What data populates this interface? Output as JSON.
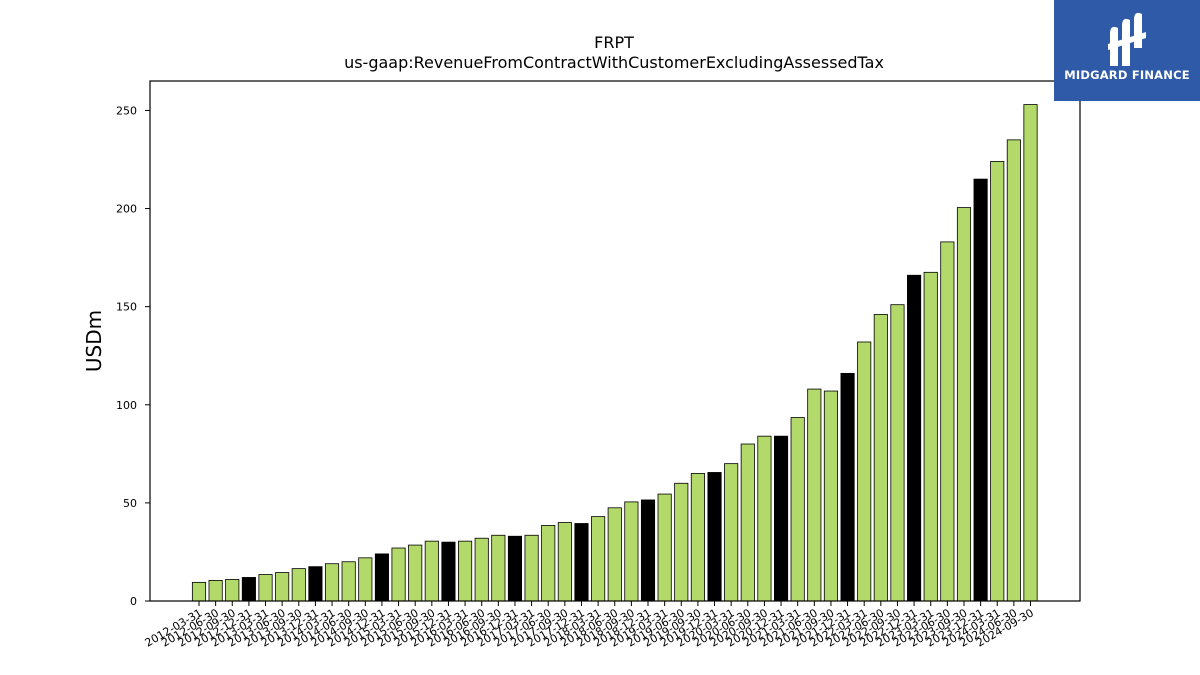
{
  "chart_data": {
    "type": "bar",
    "title": "FRPT",
    "subtitle": "us-gaap:RevenueFromContractWithCustomerExcludingAssessedTax",
    "xlabel": "",
    "ylabel": "USDm",
    "ylim": [
      0,
      265
    ],
    "yticks": [
      0,
      50,
      100,
      150,
      200,
      250
    ],
    "colors": {
      "quarter": "#b3d96b",
      "fiscal_year": "#000000",
      "edge": "#000000"
    },
    "categories": [
      "2012-03-31",
      "2012-06-30",
      "2012-09-30",
      "2012-12-31",
      "2013-03-31",
      "2013-06-30",
      "2013-09-30",
      "2013-12-31",
      "2014-03-31",
      "2014-06-30",
      "2014-09-30",
      "2014-12-31",
      "2015-03-31",
      "2015-06-30",
      "2015-09-30",
      "2015-12-31",
      "2016-03-31",
      "2016-06-30",
      "2016-09-30",
      "2016-12-31",
      "2017-03-31",
      "2017-06-30",
      "2017-09-30",
      "2017-12-31",
      "2018-03-31",
      "2018-06-30",
      "2018-09-30",
      "2018-12-31",
      "2019-03-31",
      "2019-06-30",
      "2019-09-30",
      "2019-12-31",
      "2020-03-31",
      "2020-06-30",
      "2020-09-30",
      "2020-12-31",
      "2021-03-31",
      "2021-06-30",
      "2021-09-30",
      "2021-12-31",
      "2022-03-31",
      "2022-06-30",
      "2022-09-30",
      "2022-12-31",
      "2023-03-31",
      "2023-06-30",
      "2023-09-30",
      "2023-12-31",
      "2024-03-31",
      "2024-06-30",
      "2024-09-30"
    ],
    "values": [
      9.5,
      10.5,
      11,
      12,
      13.5,
      14.5,
      16.5,
      17.5,
      19,
      20,
      22,
      24,
      27,
      28.5,
      30.5,
      30,
      30.5,
      32,
      33.5,
      33,
      33.5,
      38.5,
      40,
      39.5,
      43,
      47.5,
      50.5,
      51.5,
      54.5,
      60,
      65,
      65.5,
      70,
      80,
      84,
      84,
      93.5,
      108,
      107,
      116,
      132,
      146,
      151,
      166,
      167.5,
      183,
      200.5,
      215,
      224,
      235,
      253
    ],
    "highlighted": [
      false,
      false,
      false,
      true,
      false,
      false,
      false,
      true,
      false,
      false,
      false,
      true,
      false,
      false,
      false,
      true,
      false,
      false,
      false,
      true,
      false,
      false,
      false,
      true,
      false,
      false,
      false,
      true,
      false,
      false,
      false,
      true,
      false,
      false,
      false,
      true,
      false,
      false,
      false,
      true,
      false,
      false,
      false,
      true,
      false,
      false,
      false,
      true,
      false,
      false,
      false
    ]
  },
  "logo": {
    "text": "MIDGARD FINANCE",
    "color": "#2f5aa8"
  }
}
